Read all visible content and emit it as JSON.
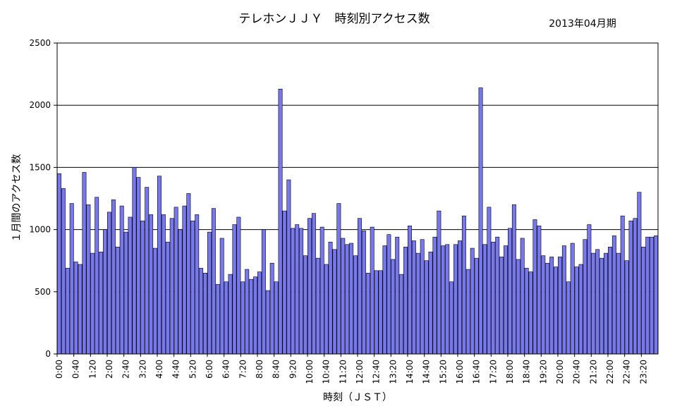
{
  "chart_data": {
    "type": "bar",
    "title": "テレホンＪＪＹ　時刻別アクセス数",
    "period_label": "2013年04月期",
    "xlabel": "時刻（ＪＳＴ）",
    "ylabel": "１月間のアクセス数",
    "ylim": [
      0,
      2500
    ],
    "yticks": [
      "0",
      "500",
      "1000",
      "1500",
      "2000",
      "2500"
    ],
    "grid": true,
    "bin_minutes": 10,
    "x_tick_labels": [
      "0:00",
      "0:40",
      "1:20",
      "2:00",
      "2:40",
      "3:20",
      "4:00",
      "4:40",
      "5:20",
      "6:00",
      "6:40",
      "7:20",
      "8:00",
      "8:40",
      "9:20",
      "10:00",
      "10:40",
      "11:20",
      "12:00",
      "12:40",
      "13:20",
      "14:00",
      "14:40",
      "15:20",
      "16:00",
      "16:40",
      "17:20",
      "18:00",
      "18:40",
      "19:20",
      "20:00",
      "20:40",
      "21:20",
      "22:00",
      "22:40",
      "23:20"
    ],
    "values": [
      1450,
      1330,
      690,
      1210,
      740,
      720,
      1460,
      1200,
      810,
      1260,
      820,
      1000,
      1140,
      1240,
      860,
      1190,
      980,
      1100,
      1500,
      1420,
      1070,
      1340,
      1120,
      850,
      1430,
      1120,
      900,
      1090,
      1180,
      1000,
      1190,
      1290,
      1070,
      1120,
      690,
      650,
      980,
      1170,
      560,
      930,
      580,
      640,
      1040,
      1100,
      580,
      680,
      600,
      620,
      660,
      1000,
      510,
      730,
      580,
      2130,
      1150,
      1400,
      1010,
      1040,
      1010,
      790,
      1090,
      1130,
      770,
      1020,
      720,
      900,
      840,
      1210,
      930,
      880,
      890,
      790,
      1090,
      990,
      650,
      1020,
      670,
      670,
      870,
      960,
      760,
      940,
      640,
      860,
      1030,
      910,
      810,
      920,
      750,
      820,
      940,
      1150,
      870,
      880,
      580,
      880,
      910,
      1110,
      680,
      850,
      770,
      2140,
      880,
      1180,
      900,
      940,
      780,
      870,
      1010,
      1200,
      760,
      930,
      690,
      660,
      1080,
      1030,
      790,
      730,
      780,
      700,
      780,
      870,
      580,
      890,
      700,
      720,
      920,
      1040,
      810,
      840,
      770,
      810,
      860,
      950,
      810,
      1110,
      750,
      1070,
      1090,
      1300,
      860,
      940,
      940,
      950
    ]
  }
}
